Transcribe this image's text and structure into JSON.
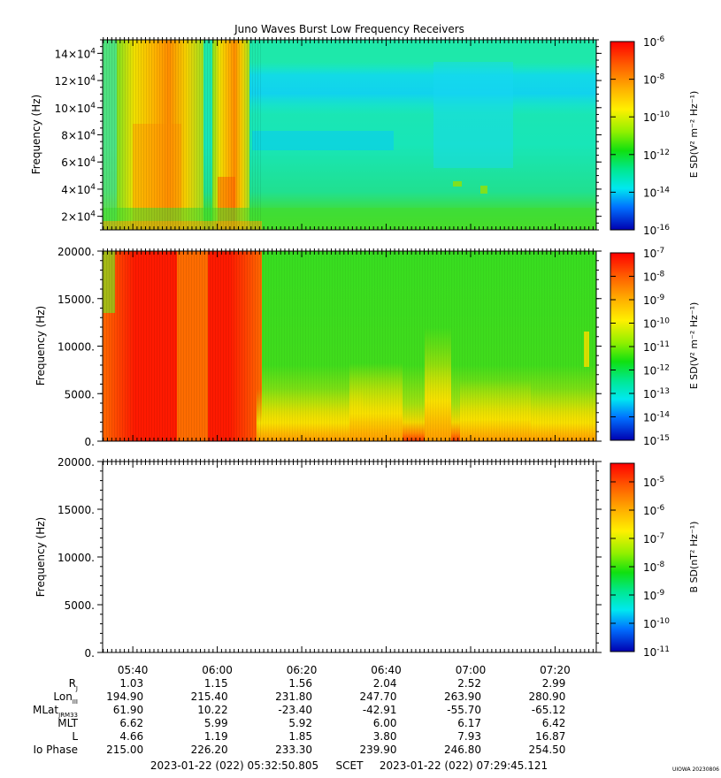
{
  "title": "Juno Waves Burst Low Frequency Receivers",
  "credit": "UIOWA 20230806",
  "chart_data": [
    {
      "type": "heatmap",
      "panel": "top",
      "ylabel": "Frequency (Hz)",
      "yticks": [
        {
          "value": 20000,
          "base": "2×10",
          "exp": "4"
        },
        {
          "value": 40000,
          "base": "4×10",
          "exp": "4"
        },
        {
          "value": 60000,
          "base": "6×10",
          "exp": "4"
        },
        {
          "value": 80000,
          "base": "8×10",
          "exp": "4"
        },
        {
          "value": 100000,
          "base": "10×10",
          "exp": "4"
        },
        {
          "value": 120000,
          "base": "12×10",
          "exp": "4"
        },
        {
          "value": 140000,
          "base": "14×10",
          "exp": "4"
        }
      ],
      "ylim": [
        10000,
        150000
      ],
      "colorbar": {
        "label": "E SD(V² m⁻² Hz⁻¹)",
        "ticks": [
          {
            "base": "10",
            "exp": "-6"
          },
          {
            "base": "10",
            "exp": "-8"
          },
          {
            "base": "10",
            "exp": "-10"
          },
          {
            "base": "10",
            "exp": "-12"
          },
          {
            "base": "10",
            "exp": "-14"
          },
          {
            "base": "10",
            "exp": "-16"
          }
        ]
      }
    },
    {
      "type": "heatmap",
      "panel": "middle",
      "ylabel": "Frequency (Hz)",
      "yticks": [
        "20000.",
        "15000.",
        "10000.",
        "5000.",
        "0."
      ],
      "ylim": [
        0,
        20000
      ],
      "colorbar": {
        "label": "E SD(V² m⁻² Hz⁻¹)",
        "ticks": [
          {
            "base": "10",
            "exp": "-7"
          },
          {
            "base": "10",
            "exp": "-8"
          },
          {
            "base": "10",
            "exp": "-9"
          },
          {
            "base": "10",
            "exp": "-10"
          },
          {
            "base": "10",
            "exp": "-11"
          },
          {
            "base": "10",
            "exp": "-12"
          },
          {
            "base": "10",
            "exp": "-13"
          },
          {
            "base": "10",
            "exp": "-14"
          },
          {
            "base": "10",
            "exp": "-15"
          }
        ]
      }
    },
    {
      "type": "heatmap",
      "panel": "bottom",
      "ylabel": "Frequency (Hz)",
      "yticks": [
        "20000.",
        "15000.",
        "10000.",
        "5000.",
        "0."
      ],
      "ylim": [
        0,
        20000
      ],
      "colorbar": {
        "label": "B SD(nT² Hz⁻¹)",
        "ticks": [
          {
            "base": "10",
            "exp": "-5"
          },
          {
            "base": "10",
            "exp": "-6"
          },
          {
            "base": "10",
            "exp": "-7"
          },
          {
            "base": "10",
            "exp": "-8"
          },
          {
            "base": "10",
            "exp": "-9"
          },
          {
            "base": "10",
            "exp": "-10"
          },
          {
            "base": "10",
            "exp": "-11"
          }
        ]
      }
    }
  ],
  "time_axis": {
    "labels": [
      "05:40",
      "06:00",
      "06:20",
      "06:40",
      "07:00",
      "07:20"
    ],
    "start": "2023-01-22 (022) 05:32:50.805",
    "mid": "SCET",
    "end": "2023-01-22 (022) 07:29:45.121"
  },
  "ephemeris": [
    {
      "name": "R",
      "sub": "J",
      "values": [
        "1.03",
        "1.15",
        "1.56",
        "2.04",
        "2.52",
        "2.99"
      ]
    },
    {
      "name": "Lon",
      "sub": "III",
      "values": [
        "194.90",
        "215.40",
        "231.80",
        "247.70",
        "263.90",
        "280.90"
      ]
    },
    {
      "name": "MLat",
      "sub": "JRM33",
      "values": [
        "61.90",
        "10.22",
        "-23.40",
        "-42.91",
        "-55.70",
        "-65.12"
      ]
    },
    {
      "name": "MLT",
      "sub": "",
      "values": [
        "6.62",
        "5.99",
        "5.92",
        "6.00",
        "6.17",
        "6.42"
      ]
    },
    {
      "name": "L",
      "sub": "",
      "values": [
        "4.66",
        "1.19",
        "1.85",
        "3.80",
        "7.93",
        "16.87"
      ]
    },
    {
      "name": "Io Phase",
      "sub": "",
      "values": [
        "215.00",
        "226.20",
        "233.30",
        "239.90",
        "246.80",
        "254.50"
      ]
    }
  ],
  "colors": {
    "red": "#ff1a00",
    "orange": "#ff8c00",
    "yellow": "#f2e400",
    "green": "#22dd22",
    "cyan": "#00e8c8",
    "blue": "#0000d0"
  }
}
